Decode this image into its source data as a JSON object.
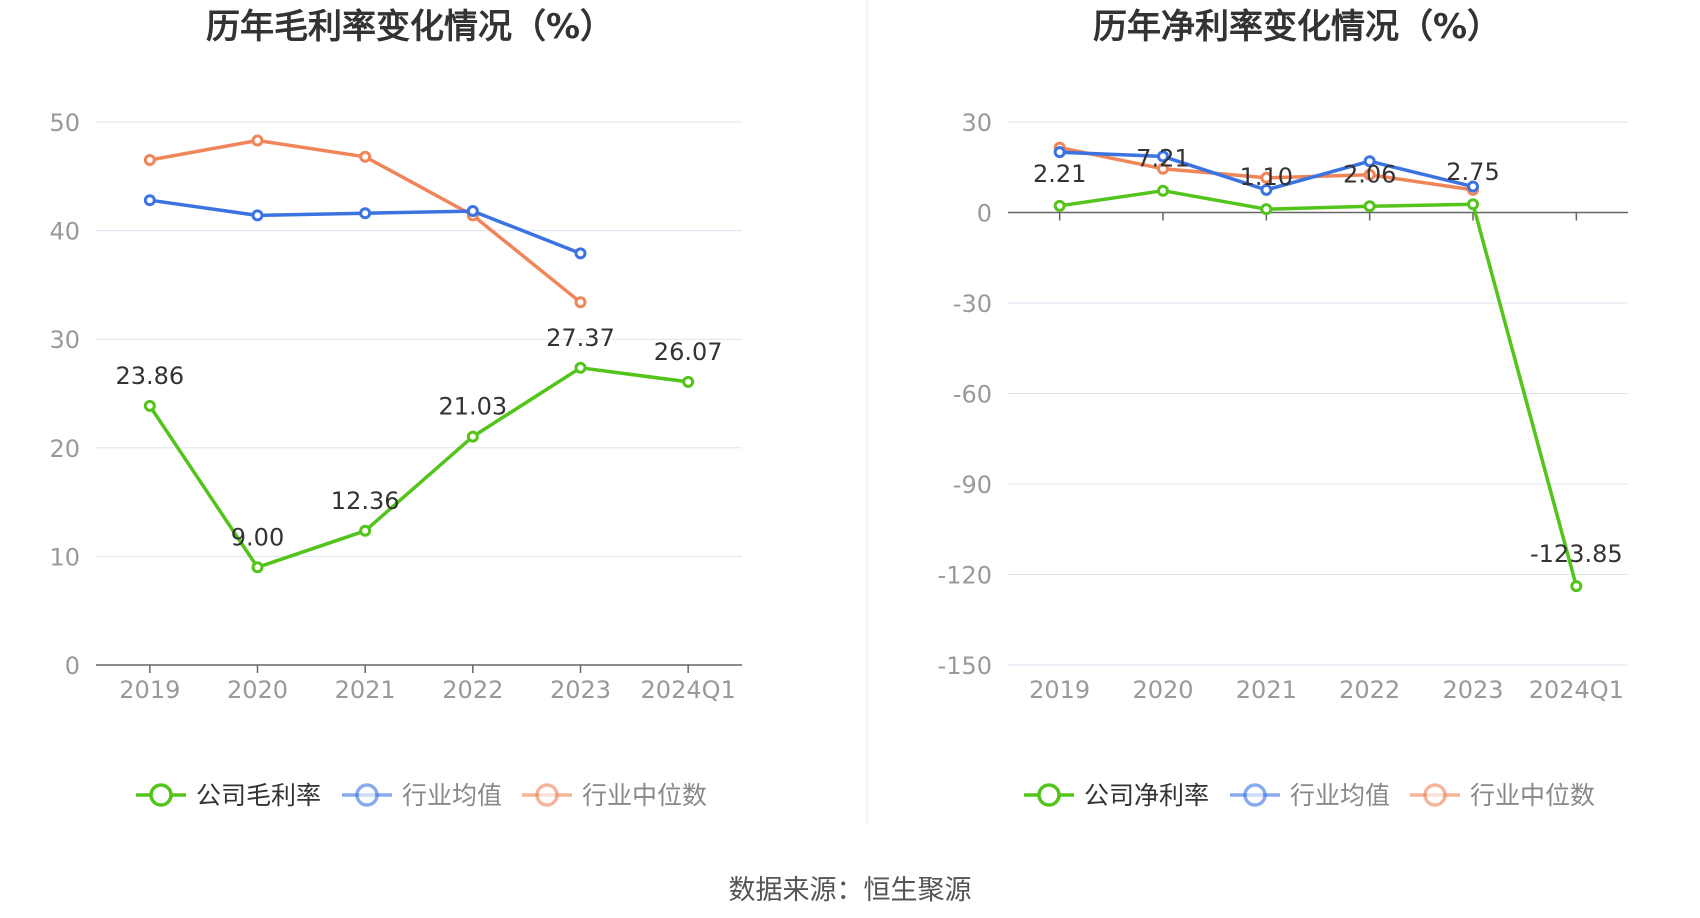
{
  "source": {
    "label": "数据来源：",
    "value": "恒生聚源"
  },
  "colors": {
    "company": "#52c41a",
    "industry_avg": "#3b73e0",
    "industry_median": "#f0855a",
    "grid": "#dde3f0",
    "axis": "#666666",
    "divider": "#e8e8e8"
  },
  "chart_data": [
    {
      "type": "line",
      "title": "历年毛利率变化情况（%）",
      "categories": [
        "2019",
        "2020",
        "2021",
        "2022",
        "2023",
        "2024Q1"
      ],
      "ylim": [
        0,
        50
      ],
      "yticks": [
        "0",
        "10",
        "20",
        "30",
        "40",
        "50"
      ],
      "grid": true,
      "legend_position": "bottom-center",
      "series": [
        {
          "name": "公司毛利率",
          "color": "#52c41a",
          "values": [
            23.86,
            9.0,
            12.36,
            21.03,
            27.37,
            26.07
          ],
          "labels": [
            "23.86",
            "9.00",
            "12.36",
            "21.03",
            "27.37",
            "26.07"
          ]
        },
        {
          "name": "行业均值",
          "color": "#3b73e0",
          "values": [
            42.8,
            41.4,
            41.6,
            41.8,
            37.9,
            null
          ]
        },
        {
          "name": "行业中位数",
          "color": "#f0855a",
          "values": [
            46.5,
            48.3,
            46.8,
            41.4,
            33.4,
            null
          ]
        }
      ]
    },
    {
      "type": "line",
      "title": "历年净利率变化情况（%）",
      "categories": [
        "2019",
        "2020",
        "2021",
        "2022",
        "2023",
        "2024Q1"
      ],
      "ylim": [
        -150,
        30
      ],
      "yticks": [
        "30",
        "0",
        "-30",
        "-60",
        "-90",
        "-120",
        "-150"
      ],
      "grid": true,
      "legend_position": "bottom-center",
      "series": [
        {
          "name": "公司净利率",
          "color": "#52c41a",
          "values": [
            2.21,
            7.21,
            1.1,
            2.06,
            2.75,
            -123.85
          ],
          "labels": [
            "2.21",
            "7.21",
            "1.10",
            "2.06",
            "2.75",
            "-123.85"
          ]
        },
        {
          "name": "行业均值",
          "color": "#3b73e0",
          "values": [
            20.0,
            18.6,
            7.5,
            17.0,
            8.6,
            null
          ]
        },
        {
          "name": "行业中位数",
          "color": "#f0855a",
          "values": [
            21.5,
            14.5,
            11.5,
            12.5,
            7.5,
            null
          ]
        }
      ]
    }
  ]
}
